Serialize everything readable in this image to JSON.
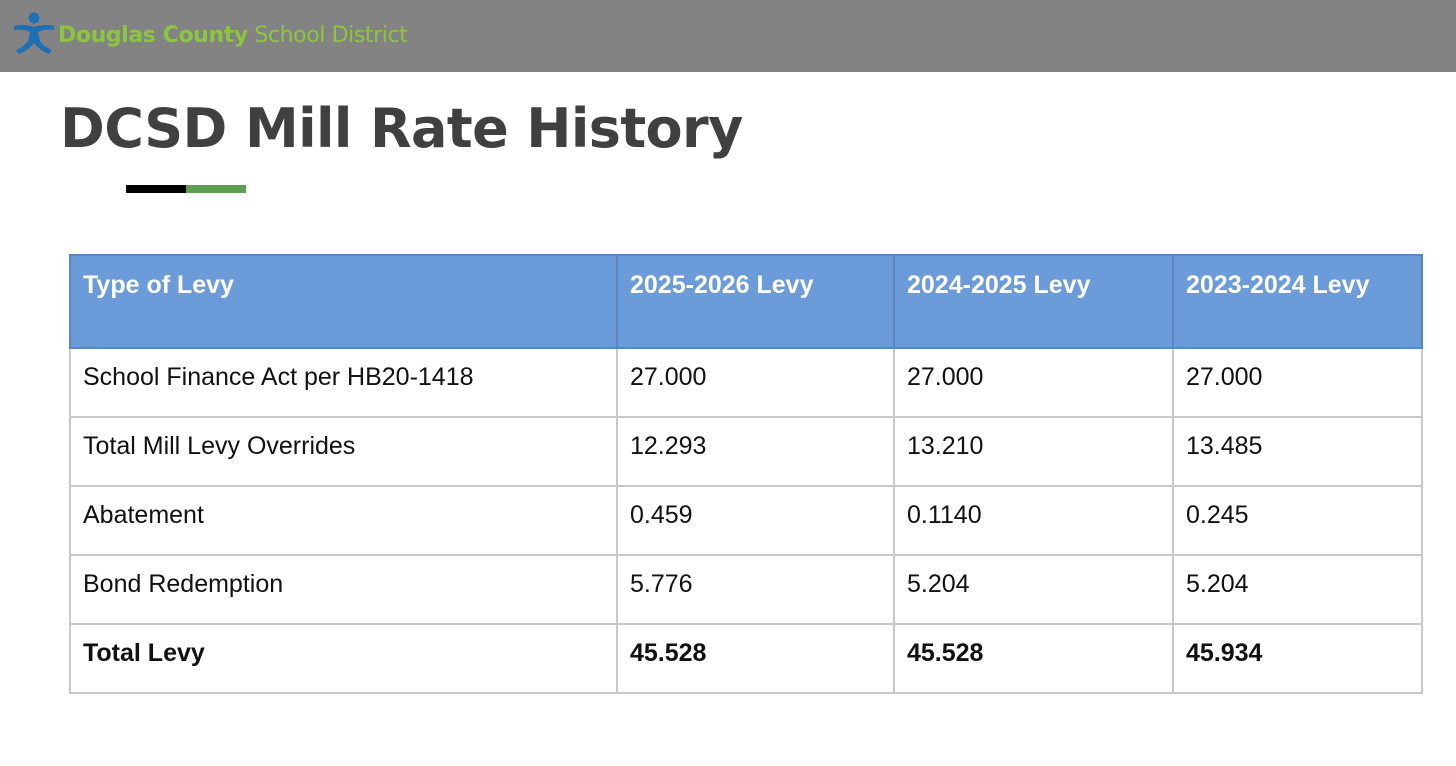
{
  "header": {
    "logo_name": "Douglas County",
    "logo_sub": " School District",
    "logo_icon": "person-figure-icon",
    "logo_color": "#1f6fb5",
    "bar_color": "#838383"
  },
  "page": {
    "title": "DCSD Mill Rate History"
  },
  "table": {
    "header_color": "#6b9bd8",
    "columns": [
      "Type of Levy",
      "2025-2026 Levy",
      "2024-2025 Levy",
      "2023-2024 Levy"
    ],
    "rows": [
      [
        "School Finance Act per HB20-1418",
        "27.000",
        "27.000",
        "27.000"
      ],
      [
        "Total Mill Levy Overrides",
        "12.293",
        "13.210",
        "13.485"
      ],
      [
        "Abatement",
        "0.459",
        "0.1140",
        "0.245"
      ],
      [
        "Bond Redemption",
        "5.776",
        "5.204",
        "5.204"
      ],
      [
        "Total Levy",
        "45.528",
        "45.528",
        "45.934"
      ]
    ]
  }
}
